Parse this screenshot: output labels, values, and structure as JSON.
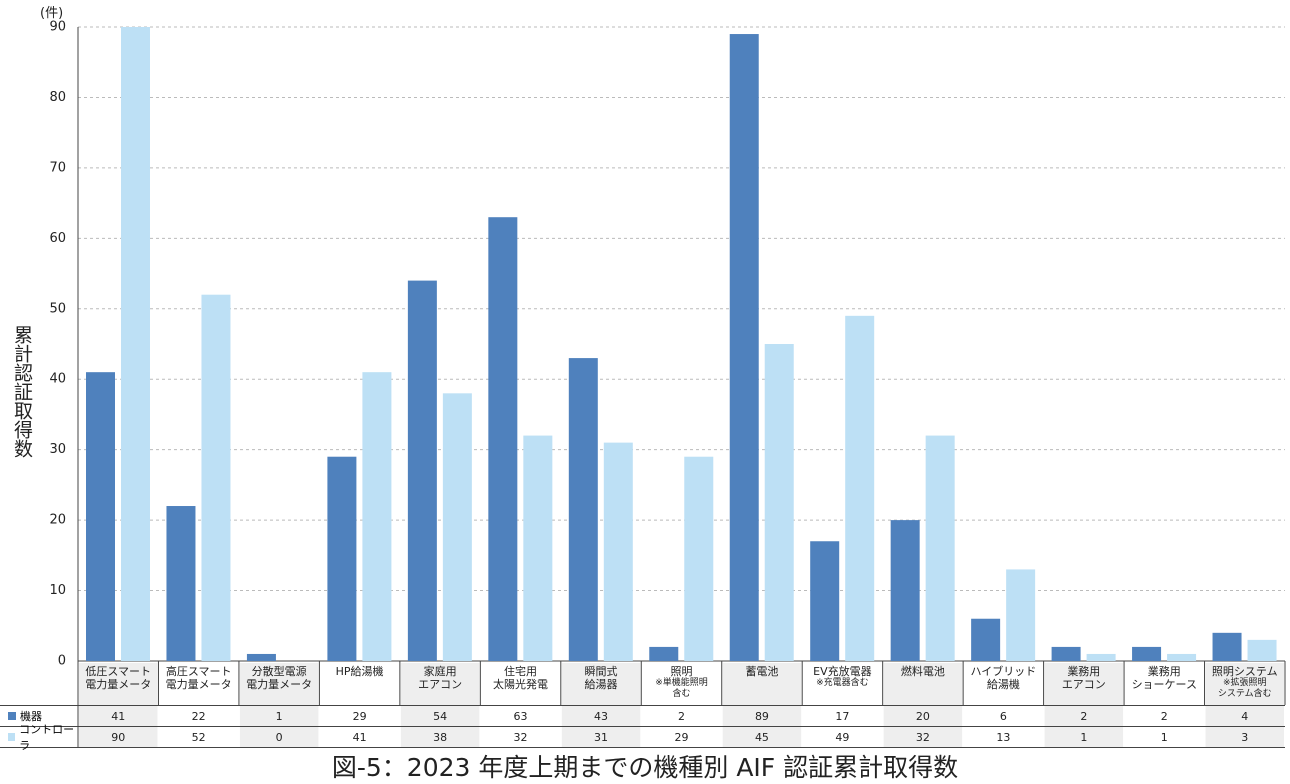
{
  "chart_data": {
    "type": "bar",
    "title": "図-5：2023 年度上期までの機種別 AIF 認証累計取得数",
    "y_label": "累計認証取得数",
    "y_unit": "(件)",
    "categories": [
      "低圧スマート\n電力量メータ",
      "高圧スマート\n電力量メータ",
      "分散型電源\n電力量メータ",
      "HP給湯機",
      "家庭用\nエアコン",
      "住宅用\n太陽光発電",
      "瞬間式\n給湯器",
      "照明",
      "蓄電池",
      "EV充放電器",
      "燃料電池",
      "ハイブリッド\n給湯機",
      "業務用\nエアコン",
      "業務用\nショーケース",
      "照明システム"
    ],
    "category_notes": [
      null,
      null,
      null,
      null,
      null,
      null,
      null,
      "※単機能照明\n含む",
      null,
      "※充電器含む",
      null,
      null,
      null,
      null,
      "※拡張照明\nシステム含む"
    ],
    "series": [
      {
        "name": "機器",
        "color": "#4f81bd",
        "values": [
          41,
          22,
          1,
          29,
          54,
          63,
          43,
          2,
          89,
          17,
          20,
          6,
          2,
          2,
          4
        ]
      },
      {
        "name": "コントローラ",
        "color": "#bde0f5",
        "values": [
          90,
          52,
          0,
          41,
          38,
          32,
          31,
          29,
          45,
          49,
          32,
          13,
          1,
          1,
          3
        ]
      }
    ],
    "ylim": [
      0,
      90
    ],
    "yticks": [
      0,
      10,
      20,
      30,
      40,
      50,
      60,
      70,
      80,
      90
    ],
    "grid": true
  }
}
